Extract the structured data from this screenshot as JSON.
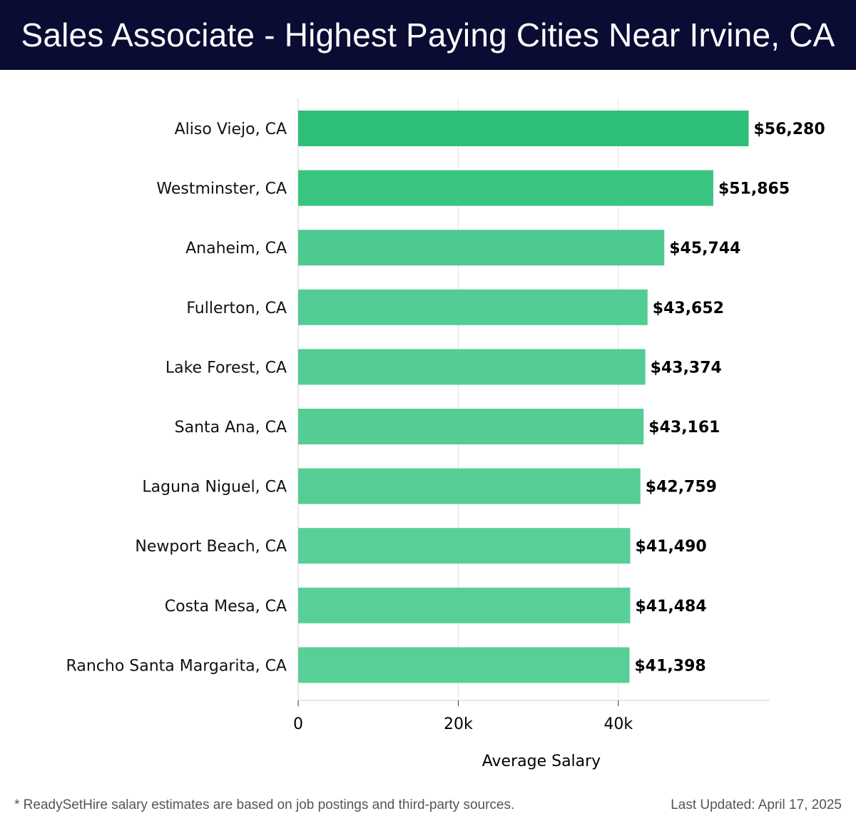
{
  "header": {
    "title": "Sales Associate - Highest Paying Cities Near Irvine, CA"
  },
  "chart_data": {
    "type": "bar",
    "orientation": "horizontal",
    "title": "Sales Associate - Highest Paying Cities Near Irvine, CA",
    "xlabel": "Average Salary",
    "ylabel": "",
    "xlim": [
      0,
      59000
    ],
    "x_ticks": [
      0,
      20000,
      40000
    ],
    "x_tick_labels": [
      "0",
      "20k",
      "40k"
    ],
    "grid": "vertical",
    "categories": [
      "Aliso Viejo, CA",
      "Westminster, CA",
      "Anaheim, CA",
      "Fullerton, CA",
      "Lake Forest, CA",
      "Santa Ana, CA",
      "Laguna Niguel, CA",
      "Newport Beach, CA",
      "Costa Mesa, CA",
      "Rancho Santa Margarita, CA"
    ],
    "values": [
      56280,
      51865,
      45744,
      43652,
      43374,
      43161,
      42759,
      41490,
      41484,
      41398
    ],
    "value_labels": [
      "$56,280",
      "$51,865",
      "$45,744",
      "$43,652",
      "$43,374",
      "$43,161",
      "$42,759",
      "$41,490",
      "$41,484",
      "$41,398"
    ],
    "colors": {
      "bar_top": "#2dbf78",
      "bar_low": "#59cf98",
      "grid": "#e3e3e3",
      "axis": "#d0d0d0"
    }
  },
  "footer": {
    "note": "* ReadySetHire salary estimates are based on job postings and third-party sources.",
    "updated": "Last Updated: April 17, 2025"
  }
}
